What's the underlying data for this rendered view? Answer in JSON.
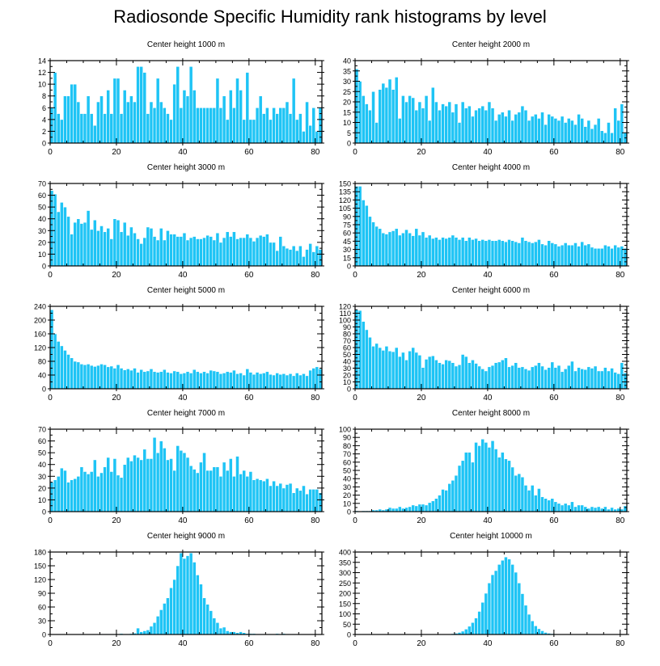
{
  "figure": {
    "title": "Radiosonde Specific Humidity rank histograms by level",
    "bar_color": "#1ec4f5",
    "bar_edge_color": "#ffffff",
    "axis_color": "#000000"
  },
  "chart_data": [
    {
      "type": "bar",
      "title": "Center height 1000 m",
      "xlabel": "",
      "ylabel": "",
      "xlim": [
        0,
        82
      ],
      "ylim": [
        0,
        14
      ],
      "xticks": [
        0,
        20,
        40,
        60,
        80
      ],
      "yticks": [
        0,
        2,
        4,
        6,
        8,
        10,
        12,
        14
      ],
      "values": [
        6,
        12,
        5,
        4,
        8,
        8,
        10,
        10,
        7,
        5,
        5,
        8,
        5,
        3,
        7,
        8,
        5,
        9,
        5,
        11,
        11,
        5,
        9,
        7,
        8,
        7,
        13,
        13,
        12,
        5,
        7,
        6,
        11,
        7,
        6,
        5,
        4,
        10,
        13,
        6,
        9,
        8,
        13,
        9,
        6,
        6,
        6,
        6,
        6,
        6,
        11,
        6,
        8,
        4,
        9,
        6,
        11,
        9,
        4,
        12,
        4,
        4,
        6,
        8,
        5,
        6,
        4,
        6,
        5,
        6,
        6,
        7,
        5,
        11,
        4,
        5,
        2,
        7,
        3,
        6,
        2,
        6
      ]
    },
    {
      "type": "bar",
      "title": "Center height 2000 m",
      "xlabel": "",
      "ylabel": "",
      "xlim": [
        0,
        82
      ],
      "ylim": [
        0,
        40
      ],
      "xticks": [
        0,
        20,
        40,
        60,
        80
      ],
      "yticks": [
        0,
        5,
        10,
        15,
        20,
        25,
        30,
        35,
        40
      ],
      "values": [
        36,
        30,
        23,
        19,
        16,
        25,
        10,
        26,
        29,
        27,
        31,
        26,
        32,
        12,
        23,
        20,
        23,
        22,
        16,
        20,
        17,
        23,
        11,
        27,
        20,
        16,
        19,
        18,
        20,
        15,
        19,
        10,
        20,
        17,
        18,
        13,
        16,
        17,
        18,
        16,
        20,
        17,
        11,
        14,
        15,
        13,
        16,
        11,
        14,
        15,
        18,
        16,
        11,
        13,
        14,
        12,
        15,
        9,
        14,
        13,
        12,
        11,
        13,
        10,
        12,
        11,
        9,
        14,
        12,
        8,
        11,
        7,
        9,
        12,
        6,
        5,
        10,
        5,
        17,
        11,
        19,
        5
      ]
    },
    {
      "type": "bar",
      "title": "Center height 3000 m",
      "xlabel": "",
      "ylabel": "",
      "xlim": [
        0,
        82
      ],
      "ylim": [
        0,
        70
      ],
      "xticks": [
        0,
        20,
        40,
        60,
        80
      ],
      "yticks": [
        0,
        10,
        20,
        30,
        40,
        50,
        60,
        70
      ],
      "values": [
        64,
        61,
        46,
        54,
        50,
        42,
        27,
        37,
        40,
        36,
        37,
        47,
        31,
        39,
        30,
        34,
        29,
        32,
        23,
        40,
        39,
        29,
        37,
        26,
        33,
        28,
        23,
        19,
        24,
        33,
        32,
        25,
        22,
        32,
        22,
        30,
        27,
        27,
        25,
        25,
        28,
        22,
        24,
        25,
        23,
        23,
        24,
        26,
        25,
        22,
        28,
        20,
        24,
        29,
        25,
        29,
        23,
        24,
        24,
        27,
        24,
        21,
        24,
        26,
        25,
        27,
        20,
        20,
        13,
        25,
        17,
        15,
        14,
        17,
        13,
        17,
        8,
        14,
        19,
        12,
        17,
        14
      ]
    },
    {
      "type": "bar",
      "title": "Center height 4000 m",
      "xlabel": "",
      "ylabel": "",
      "xlim": [
        0,
        82
      ],
      "ylim": [
        0,
        150
      ],
      "xticks": [
        0,
        20,
        40,
        60,
        80
      ],
      "yticks": [
        0,
        15,
        30,
        45,
        60,
        75,
        90,
        105,
        120,
        135,
        150
      ],
      "values": [
        145,
        145,
        120,
        110,
        90,
        80,
        72,
        68,
        60,
        58,
        62,
        64,
        68,
        56,
        60,
        66,
        60,
        55,
        68,
        56,
        62,
        52,
        56,
        50,
        52,
        48,
        52,
        50,
        52,
        56,
        52,
        48,
        52,
        46,
        52,
        48,
        50,
        46,
        48,
        46,
        48,
        46,
        46,
        48,
        46,
        44,
        48,
        46,
        44,
        42,
        52,
        46,
        44,
        42,
        44,
        48,
        40,
        38,
        46,
        42,
        40,
        36,
        38,
        42,
        38,
        38,
        42,
        36,
        44,
        38,
        40,
        34,
        32,
        32,
        32,
        38,
        36,
        32,
        38,
        34,
        36,
        32
      ]
    },
    {
      "type": "bar",
      "title": "Center height 5000 m",
      "xlabel": "",
      "ylabel": "",
      "xlim": [
        0,
        82
      ],
      "ylim": [
        0,
        240
      ],
      "xticks": [
        0,
        20,
        40,
        60,
        80
      ],
      "yticks": [
        0,
        40,
        80,
        120,
        160,
        200,
        240
      ],
      "values": [
        230,
        160,
        138,
        125,
        112,
        100,
        90,
        80,
        78,
        72,
        70,
        72,
        68,
        65,
        68,
        72,
        70,
        64,
        66,
        60,
        70,
        60,
        55,
        58,
        54,
        60,
        48,
        56,
        50,
        52,
        58,
        50,
        48,
        50,
        56,
        48,
        46,
        52,
        50,
        44,
        46,
        50,
        46,
        56,
        50,
        46,
        50,
        46,
        54,
        52,
        50,
        44,
        46,
        50,
        48,
        54,
        44,
        46,
        40,
        58,
        48,
        42,
        48,
        44,
        46,
        50,
        42,
        40,
        46,
        42,
        44,
        40,
        44,
        38,
        46,
        40,
        44,
        38,
        54,
        60,
        64,
        58
      ]
    },
    {
      "type": "bar",
      "title": "Center height 6000 m",
      "xlabel": "",
      "ylabel": "",
      "xlim": [
        0,
        82
      ],
      "ylim": [
        0,
        120
      ],
      "xticks": [
        0,
        20,
        40,
        60,
        80
      ],
      "yticks": [
        0,
        10,
        20,
        30,
        40,
        50,
        60,
        70,
        80,
        90,
        100,
        110,
        120
      ],
      "values": [
        115,
        114,
        98,
        86,
        75,
        62,
        66,
        60,
        56,
        62,
        55,
        54,
        60,
        47,
        53,
        42,
        55,
        60,
        53,
        49,
        31,
        43,
        47,
        48,
        42,
        38,
        36,
        42,
        41,
        38,
        33,
        35,
        50,
        47,
        38,
        42,
        37,
        33,
        29,
        26,
        32,
        34,
        38,
        39,
        42,
        45,
        32,
        34,
        38,
        31,
        32,
        29,
        27,
        32,
        34,
        38,
        33,
        28,
        31,
        39,
        31,
        34,
        25,
        29,
        34,
        40,
        26,
        31,
        29,
        28,
        32,
        30,
        33,
        26,
        26,
        31,
        26,
        30,
        24,
        22,
        38,
        23
      ]
    },
    {
      "type": "bar",
      "title": "Center height 7000 m",
      "xlabel": "",
      "ylabel": "",
      "xlim": [
        0,
        82
      ],
      "ylim": [
        0,
        70
      ],
      "xticks": [
        0,
        20,
        40,
        60,
        80
      ],
      "yticks": [
        0,
        10,
        20,
        30,
        40,
        50,
        60,
        70
      ],
      "values": [
        25,
        27,
        30,
        37,
        35,
        25,
        27,
        28,
        30,
        38,
        34,
        32,
        34,
        44,
        30,
        33,
        38,
        46,
        34,
        45,
        31,
        29,
        40,
        46,
        43,
        48,
        46,
        44,
        53,
        45,
        45,
        63,
        50,
        60,
        54,
        44,
        45,
        35,
        56,
        52,
        50,
        46,
        39,
        36,
        33,
        42,
        50,
        35,
        35,
        38,
        38,
        30,
        42,
        35,
        45,
        30,
        47,
        32,
        35,
        30,
        34,
        27,
        28,
        27,
        26,
        28,
        22,
        26,
        22,
        24,
        20,
        23,
        24,
        16,
        20,
        18,
        22,
        15,
        19,
        19,
        19,
        16
      ]
    },
    {
      "type": "bar",
      "title": "Center height 8000 m",
      "xlabel": "",
      "ylabel": "",
      "xlim": [
        0,
        82
      ],
      "ylim": [
        0,
        100
      ],
      "xticks": [
        0,
        20,
        40,
        60,
        80
      ],
      "yticks": [
        0,
        10,
        20,
        30,
        40,
        50,
        60,
        70,
        80,
        90,
        100
      ],
      "values": [
        1,
        0,
        1,
        1,
        1,
        2,
        2,
        3,
        2,
        3,
        5,
        4,
        4,
        6,
        4,
        5,
        6,
        8,
        7,
        9,
        9,
        8,
        11,
        13,
        16,
        20,
        27,
        26,
        34,
        38,
        44,
        56,
        62,
        72,
        72,
        60,
        84,
        80,
        88,
        84,
        78,
        86,
        76,
        66,
        72,
        64,
        62,
        54,
        44,
        46,
        42,
        32,
        26,
        32,
        20,
        28,
        18,
        16,
        14,
        16,
        12,
        10,
        8,
        10,
        8,
        12,
        6,
        8,
        8,
        6,
        4,
        6,
        5,
        6,
        4,
        6,
        3,
        5,
        3,
        4,
        3,
        7
      ]
    },
    {
      "type": "bar",
      "title": "Center height 9000 m",
      "xlabel": "",
      "ylabel": "",
      "xlim": [
        0,
        82
      ],
      "ylim": [
        0,
        180
      ],
      "xticks": [
        0,
        20,
        40,
        60,
        80
      ],
      "yticks": [
        0,
        30,
        60,
        90,
        120,
        150,
        180
      ],
      "values": [
        0,
        0,
        0,
        0,
        0,
        0,
        0,
        0,
        0,
        0,
        0,
        0,
        0,
        0,
        0,
        1,
        1,
        1,
        0,
        1,
        1,
        2,
        1,
        1,
        2,
        3,
        14,
        6,
        8,
        10,
        18,
        26,
        40,
        54,
        68,
        80,
        102,
        120,
        150,
        178,
        166,
        172,
        178,
        158,
        130,
        110,
        80,
        66,
        52,
        36,
        26,
        14,
        16,
        8,
        6,
        6,
        4,
        6,
        4,
        2,
        2,
        2,
        1,
        1,
        1,
        0,
        1,
        0,
        2,
        1,
        2,
        1,
        0,
        1,
        0,
        0,
        0,
        0,
        0,
        0,
        0,
        0
      ]
    },
    {
      "type": "bar",
      "title": "Center height 10000 m",
      "xlabel": "",
      "ylabel": "",
      "xlim": [
        0,
        82
      ],
      "ylim": [
        0,
        400
      ],
      "xticks": [
        0,
        20,
        40,
        60,
        80
      ],
      "yticks": [
        0,
        50,
        100,
        150,
        200,
        250,
        300,
        350,
        400
      ],
      "values": [
        0,
        0,
        0,
        0,
        0,
        0,
        0,
        0,
        0,
        0,
        0,
        0,
        0,
        0,
        0,
        0,
        0,
        0,
        0,
        0,
        0,
        0,
        0,
        0,
        0,
        0,
        0,
        1,
        2,
        4,
        6,
        10,
        16,
        26,
        40,
        58,
        80,
        112,
        156,
        200,
        250,
        290,
        310,
        340,
        360,
        376,
        366,
        340,
        302,
        250,
        198,
        142,
        98,
        66,
        42,
        28,
        18,
        10,
        6,
        4,
        2,
        1,
        1,
        0,
        0,
        0,
        0,
        0,
        0,
        0,
        0,
        0,
        0,
        0,
        0,
        0,
        0,
        0,
        0,
        0,
        0,
        0
      ]
    }
  ]
}
